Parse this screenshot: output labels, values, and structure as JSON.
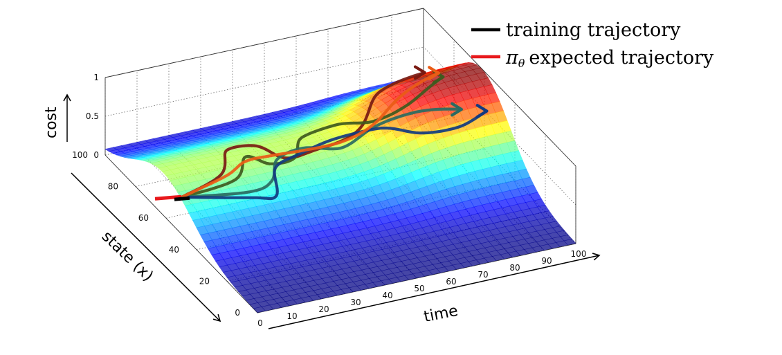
{
  "chart_data": {
    "type": "surface",
    "x_label": "time",
    "y_label": "state (x)",
    "z_label": "cost",
    "x_ticks": [
      0,
      10,
      20,
      30,
      40,
      50,
      60,
      70,
      80,
      90,
      100
    ],
    "y_ticks": [
      0,
      20,
      40,
      60,
      80,
      100
    ],
    "z_ticks": [
      0,
      0.5,
      1
    ],
    "xlim": [
      0,
      100
    ],
    "ylim": [
      0,
      100
    ],
    "zlim": [
      0,
      1
    ],
    "grid": true,
    "colormap": "jet",
    "legend_position": "top-right",
    "legend": [
      {
        "label": "training trajectory",
        "color": "#000000"
      },
      {
        "label": "π",
        "sub": "θ",
        "rest": "expected trajectory",
        "color": "#e8191c"
      }
    ],
    "series": [
      {
        "name": "training trajectory",
        "color": "#7a1a12",
        "points": [
          [
            0,
            50
          ],
          [
            15,
            55
          ],
          [
            22,
            66
          ],
          [
            30,
            65
          ],
          [
            35,
            56
          ],
          [
            45,
            56
          ],
          [
            60,
            58
          ],
          [
            72,
            70
          ],
          [
            86,
            70
          ]
        ]
      },
      {
        "name": "training trajectory",
        "color": "#3f5a1e",
        "points": [
          [
            0,
            50
          ],
          [
            18,
            52
          ],
          [
            25,
            60
          ],
          [
            30,
            55
          ],
          [
            38,
            55
          ],
          [
            44,
            63
          ],
          [
            55,
            64
          ],
          [
            64,
            58
          ],
          [
            75,
            57
          ],
          [
            88,
            62
          ]
        ]
      },
      {
        "name": "training trajectory",
        "color": "#2a6b62",
        "points": [
          [
            0,
            50
          ],
          [
            20,
            47
          ],
          [
            28,
            49
          ],
          [
            33,
            56
          ],
          [
            42,
            58
          ],
          [
            52,
            54
          ],
          [
            63,
            56
          ],
          [
            74,
            54
          ],
          [
            88,
            50
          ]
        ]
      },
      {
        "name": "training trajectory",
        "color": "#123a80",
        "points": [
          [
            0,
            50
          ],
          [
            20,
            45
          ],
          [
            27,
            44
          ],
          [
            31,
            53
          ],
          [
            40,
            56
          ],
          [
            52,
            58
          ],
          [
            64,
            55
          ],
          [
            74,
            48
          ],
          [
            85,
            46
          ],
          [
            95,
            48
          ]
        ]
      },
      {
        "name": "π",
        "color": "#ea5c16",
        "points": [
          [
            0,
            50
          ],
          [
            16,
            54
          ],
          [
            24,
            58
          ],
          [
            32,
            58
          ],
          [
            42,
            57
          ],
          [
            54,
            56
          ],
          [
            64,
            57
          ],
          [
            74,
            61
          ],
          [
            88,
            65
          ]
        ]
      }
    ]
  }
}
